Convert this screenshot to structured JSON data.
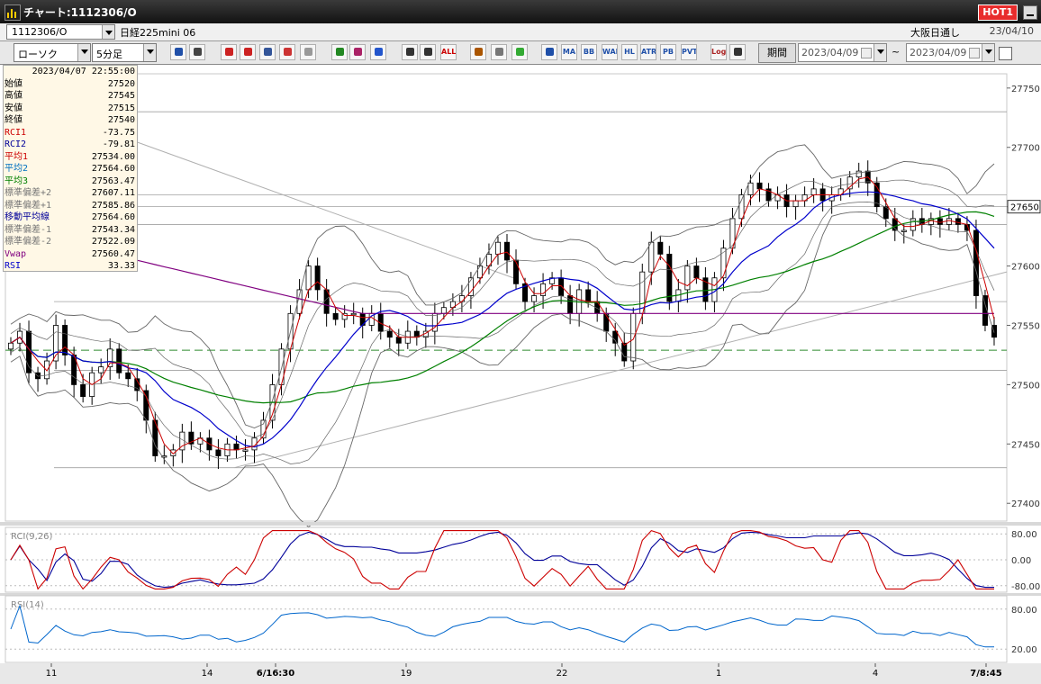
{
  "window": {
    "title": "チャート:1112306/O",
    "hot_badge": "HOT1"
  },
  "symbol_bar": {
    "symbol": "1112306/O",
    "name": "日経225mini 06",
    "market": "大阪日通し",
    "date": "23/04/10"
  },
  "toolbar": {
    "chart_type": "ローソク",
    "interval": "5分足",
    "period_label": "期間",
    "date_from": "2023/04/09",
    "tilde": "~",
    "date_to": "2023/04/09",
    "buttons": [
      {
        "name": "zoom-icon",
        "label": "",
        "color": "#1f4fa8"
      },
      {
        "name": "crosshair-icon",
        "label": "",
        "color": "#444444"
      },
      {
        "name": "buy-icon",
        "label": "",
        "color": "#cc2222"
      },
      {
        "name": "magnify-icon",
        "label": "",
        "color": "#cc2222"
      },
      {
        "name": "chart-add-icon",
        "label": "",
        "color": "#335599"
      },
      {
        "name": "compare-icon",
        "label": "",
        "color": "#cc3333"
      },
      {
        "name": "print-icon",
        "label": "",
        "color": "#999999"
      },
      {
        "name": "pencil-icon",
        "label": "",
        "color": "#228822"
      },
      {
        "name": "cursor-icon",
        "label": "",
        "color": "#aa2266"
      },
      {
        "name": "undo-icon",
        "label": "",
        "color": "#2255cc"
      },
      {
        "name": "candle-a-icon",
        "label": "",
        "color": "#333333"
      },
      {
        "name": "candle-b-icon",
        "label": "",
        "color": "#333333"
      },
      {
        "name": "all-icon",
        "label": "ALL",
        "color": "#cc0000"
      },
      {
        "name": "tools-icon",
        "label": "",
        "color": "#aa5500"
      },
      {
        "name": "wrench-icon",
        "label": "",
        "color": "#777777"
      },
      {
        "name": "palette-icon",
        "label": "",
        "color": "#33aa33"
      },
      {
        "name": "indicator-icon",
        "label": "",
        "color": "#1f4fa8"
      },
      {
        "name": "ma-icon",
        "label": "MA",
        "color": "#1f4fa8"
      },
      {
        "name": "bb-icon",
        "label": "BB",
        "color": "#1f4fa8"
      },
      {
        "name": "wae-icon",
        "label": "WAE",
        "color": "#1f4fa8"
      },
      {
        "name": "hl-icon",
        "label": "HL",
        "color": "#1f4fa8"
      },
      {
        "name": "atr-icon",
        "label": "ATR",
        "color": "#1f4fa8"
      },
      {
        "name": "pb-icon",
        "label": "PB",
        "color": "#1f4fa8"
      },
      {
        "name": "pvt-icon",
        "label": "PVT",
        "color": "#1f4fa8"
      },
      {
        "name": "log-icon",
        "label": "Log",
        "color": "#aa2222"
      },
      {
        "name": "save-icon",
        "label": "",
        "color": "#333333"
      }
    ]
  },
  "info_panel": {
    "datetime": "2023/04/07 22:55:00",
    "rows": [
      {
        "label": "始値",
        "value": "27520",
        "color": "#000000"
      },
      {
        "label": "高値",
        "value": "27545",
        "color": "#000000"
      },
      {
        "label": "安値",
        "value": "27515",
        "color": "#000000"
      },
      {
        "label": "終値",
        "value": "27540",
        "color": "#000000"
      },
      {
        "label": "RCI1",
        "value": "-73.75",
        "color": "#cc0000"
      },
      {
        "label": "RCI2",
        "value": "-79.81",
        "color": "#000099"
      },
      {
        "label": "平均1",
        "value": "27534.00",
        "color": "#cc0000"
      },
      {
        "label": "平均2",
        "value": "27564.60",
        "color": "#0070c0"
      },
      {
        "label": "平均3",
        "value": "27563.47",
        "color": "#008000"
      },
      {
        "label": "標準偏差+2",
        "value": "27607.11",
        "color": "#777777"
      },
      {
        "label": "標準偏差+1",
        "value": "27585.86",
        "color": "#777777"
      },
      {
        "label": "移動平均線",
        "value": "27564.60",
        "color": "#000099"
      },
      {
        "label": "標準偏差-1",
        "value": "27543.34",
        "color": "#777777"
      },
      {
        "label": "標準偏差-2",
        "value": "27522.09",
        "color": "#777777"
      },
      {
        "label": "Vwap",
        "value": "27560.47",
        "color": "#800080"
      },
      {
        "label": "RSI",
        "value": "33.33",
        "color": "#0000cc"
      }
    ]
  },
  "chart_data": [
    {
      "type": "candlestick",
      "panel": "price",
      "y_ticks": [
        27400,
        27450,
        27500,
        27550,
        27600,
        27650,
        27700,
        27750
      ],
      "ylim": [
        27385,
        27762
      ],
      "current_price_label": "27650",
      "horizontal_levels": [
        27730,
        27660,
        27650,
        27635,
        27570,
        27512,
        27430
      ],
      "dashed_level": 27529,
      "candles_approx_close": [
        27535,
        27545,
        27510,
        27505,
        27520,
        27550,
        27525,
        27500,
        27490,
        27510,
        27515,
        27530,
        27510,
        27505,
        27495,
        27470,
        27440,
        27440,
        27445,
        27460,
        27450,
        27455,
        27445,
        27440,
        27450,
        27445,
        27445,
        27455,
        27470,
        27500,
        27530,
        27560,
        27580,
        27600,
        27580,
        27560,
        27555,
        27560,
        27560,
        27550,
        27560,
        27545,
        27540,
        27535,
        27545,
        27540,
        27545,
        27560,
        27565,
        27570,
        27575,
        27590,
        27600,
        27610,
        27620,
        27605,
        27585,
        27570,
        27575,
        27585,
        27590,
        27575,
        27560,
        27580,
        27570,
        27560,
        27545,
        27535,
        27520,
        27560,
        27595,
        27620,
        27610,
        27570,
        27580,
        27600,
        27590,
        27570,
        27590,
        27615,
        27640,
        27660,
        27670,
        27665,
        27655,
        27660,
        27650,
        27655,
        27660,
        27665,
        27655,
        27660,
        27665,
        27675,
        27680,
        27670,
        27650,
        27640,
        27630,
        27630,
        27640,
        27635,
        27640,
        27635,
        27640,
        27635,
        27630,
        27575,
        27550,
        27540
      ],
      "overlays": [
        {
          "name": "平均1",
          "color": "#cc0000"
        },
        {
          "name": "平均2",
          "color": "#0000cc"
        },
        {
          "name": "平均3",
          "color": "#008000"
        },
        {
          "name": "Vwap",
          "color": "#800080"
        },
        {
          "name": "標準偏差±1/±2",
          "color": "#666666"
        }
      ],
      "x_tick_labels": [
        "11",
        "14",
        "6/16:30",
        "19",
        "22",
        "1",
        "4",
        "7/8:45"
      ]
    },
    {
      "type": "line",
      "panel": "RCI",
      "title": "RCI(9,26)",
      "y_ticks": [
        "80.00",
        "0.00",
        "-80.00"
      ],
      "ylim": [
        -100,
        100
      ],
      "series": [
        {
          "name": "RCI1",
          "color": "#cc0000"
        },
        {
          "name": "RCI2",
          "color": "#000099"
        }
      ]
    },
    {
      "type": "line",
      "panel": "RSI",
      "title": "RSI(14)",
      "y_ticks": [
        "80.00",
        "20.00"
      ],
      "ylim": [
        0,
        100
      ],
      "series": [
        {
          "name": "RSI",
          "color": "#0066cc"
        }
      ]
    }
  ]
}
